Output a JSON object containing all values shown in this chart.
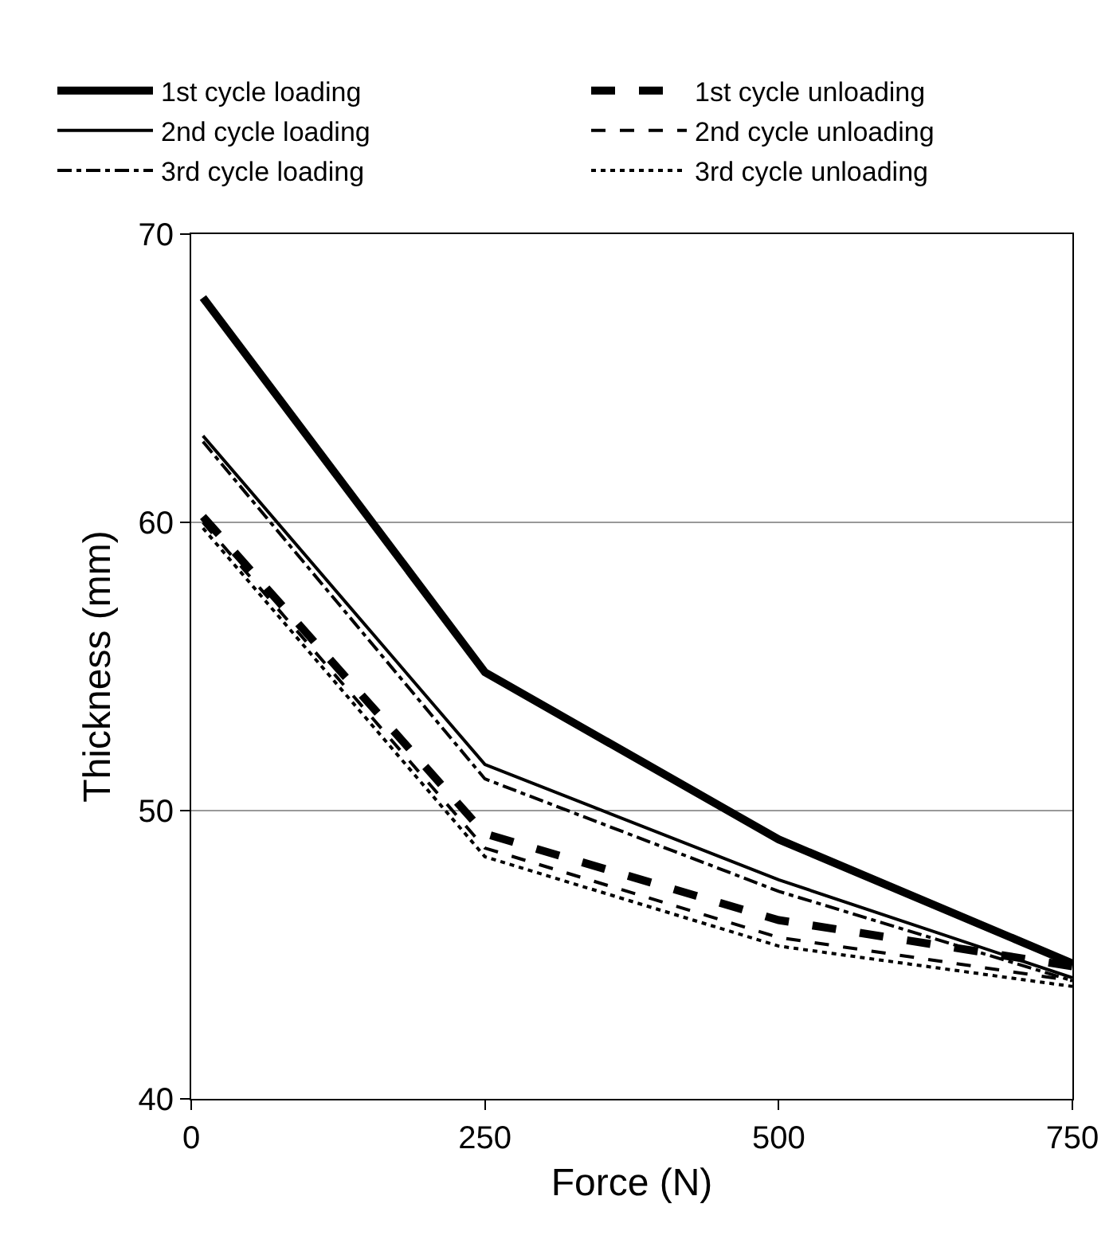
{
  "chart_data": {
    "type": "line",
    "xlabel": "Force (N)",
    "ylabel": "Thickness (mm)",
    "x": [
      10,
      250,
      500,
      750
    ],
    "series": [
      {
        "name": "1st cycle loading",
        "color": "#000000",
        "line_style": "solid",
        "values": [
          67.8,
          54.8,
          49.0,
          44.7
        ]
      },
      {
        "name": "1st cycle unloading",
        "color": "#000000",
        "line_style": "dashed",
        "values": [
          60.2,
          49.2,
          46.2,
          44.6
        ]
      },
      {
        "name": "2nd cycle loading",
        "color": "#000000",
        "line_style": "solid",
        "values": [
          63.0,
          51.6,
          47.6,
          44.2
        ]
      },
      {
        "name": "2nd cycle unloading",
        "color": "#000000",
        "line_style": "dashed",
        "values": [
          60.0,
          48.7,
          45.6,
          44.1
        ]
      },
      {
        "name": "3rd cycle loading",
        "color": "#000000",
        "line_style": "dashdot",
        "values": [
          62.8,
          51.1,
          47.2,
          44.1
        ]
      },
      {
        "name": "3rd cycle unloading",
        "color": "#000000",
        "line_style": "dotted",
        "values": [
          59.8,
          48.4,
          45.3,
          43.9
        ]
      }
    ],
    "xlim": [
      0,
      750
    ],
    "xticks": [
      0,
      250,
      500,
      750
    ],
    "ylim": [
      40,
      70
    ],
    "yticks": [
      40,
      50,
      60,
      70
    ],
    "grid": "y",
    "legend": "top",
    "marker": "none"
  }
}
